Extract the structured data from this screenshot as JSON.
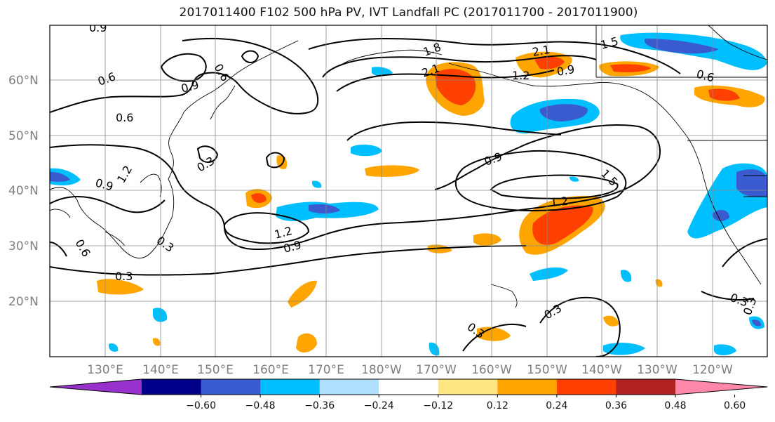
{
  "title": "2017011400 F102 500 hPa PV, IVT Landfall PC (2017011700 - 2017011900)",
  "lat_labels": [
    "60°N",
    "50°N",
    "40°N",
    "30°N",
    "20°N"
  ],
  "lon_labels": [
    "130°E",
    "140°E",
    "150°E",
    "160°E",
    "170°E",
    "180°W",
    "170°W",
    "160°W",
    "150°W",
    "140°W",
    "130°W",
    "120°W"
  ],
  "colorbar": {
    "ticks": [
      "−0.60",
      "−0.48",
      "−0.36",
      "−0.24",
      "−0.12",
      "0.12",
      "0.24",
      "0.36",
      "0.48",
      "0.60"
    ],
    "colors": [
      "#9932cc",
      "#00008b",
      "#3a5bd0",
      "#00bfff",
      "#b0e0ff",
      "#ffffff",
      "#ffe680",
      "#ffa500",
      "#ff4000",
      "#b22222",
      "#ff88aa"
    ]
  },
  "contour_labels": [
    "0.9",
    "0.6",
    "0.9",
    "0.6",
    "0.6",
    "0.3",
    "1.2",
    "0.9",
    "1.8",
    "2.1",
    "2.1",
    "1.2",
    "0.9",
    "1.5",
    "0.6",
    "0.9",
    "1.5",
    "1.2",
    "1.2",
    "0.9",
    "0.3",
    "0.6",
    "0.3",
    "0.3",
    "0.3",
    "0.3",
    "0.3"
  ]
}
